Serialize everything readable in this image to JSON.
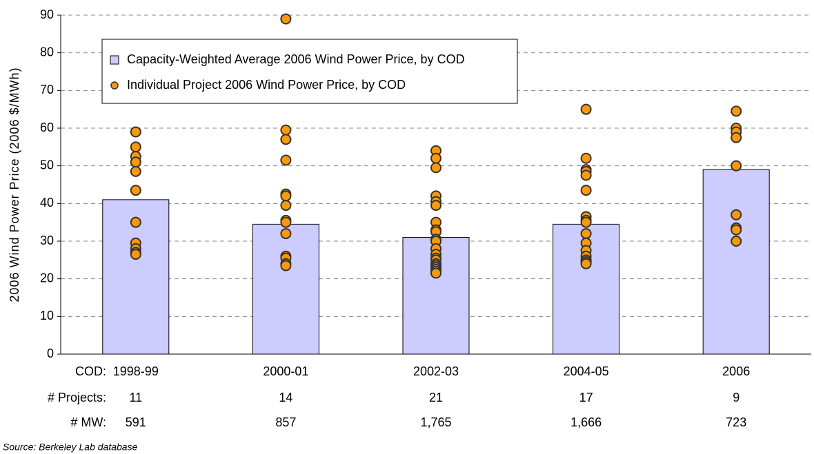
{
  "chart_data": {
    "type": "bar",
    "y_label": "2006 Wind Power Price (2006 $/MWh)",
    "source": "Source: Berkeley Lab database",
    "categories": [
      "1998-99",
      "2000-01",
      "2002-03",
      "2004-05",
      "2006"
    ],
    "series": [
      {
        "name": "Capacity-Weighted Average 2006 Wind Power Price, by COD",
        "type": "bar",
        "color": "#ccccff",
        "values": [
          41,
          34.5,
          31,
          34.5,
          49
        ]
      },
      {
        "name": "Individual Project 2006 Wind Power Price, by COD",
        "type": "scatter",
        "color": "#ff9900",
        "values": [
          [
            59,
            55,
            52.5,
            51,
            48.5,
            43.5,
            35,
            29.5,
            28,
            27,
            26.5
          ],
          [
            89,
            59.5,
            57,
            51.5,
            42.5,
            42,
            39.5,
            35.5,
            35,
            32,
            26,
            25.5,
            24,
            23.5
          ],
          [
            54,
            52,
            49.5,
            42,
            40.5,
            39.5,
            35,
            33,
            32.5,
            30.5,
            30,
            28,
            26.5,
            25.5,
            25,
            24,
            23.5,
            23,
            22.5,
            22,
            21.5
          ],
          [
            65,
            52,
            49,
            48.5,
            47.5,
            43.5,
            36.5,
            35.5,
            35,
            32,
            29.5,
            27.5,
            26,
            25,
            24.5,
            24.5,
            24
          ],
          [
            64.5,
            60,
            59,
            57.5,
            50,
            37,
            33.5,
            33,
            30
          ]
        ]
      }
    ],
    "ylim": [
      0,
      90
    ],
    "yticks": [
      0,
      10,
      20,
      30,
      40,
      50,
      60,
      70,
      80,
      90
    ],
    "grid": true,
    "table": {
      "row_labels": [
        "COD:",
        "# Projects:",
        "# MW:"
      ],
      "projects": [
        11,
        14,
        21,
        17,
        9
      ],
      "mw": [
        "591",
        "857",
        "1,765",
        "1,666",
        "723"
      ]
    }
  }
}
